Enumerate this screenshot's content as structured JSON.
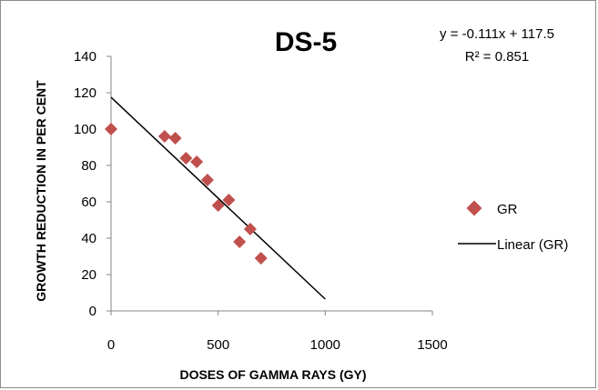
{
  "chart_data": {
    "type": "scatter",
    "title": "DS-5",
    "xlabel": "DOSES OF GAMMA RAYS (GY)",
    "ylabel": "GROWTH REDUCTION IN PER CENT",
    "xlim": [
      0,
      1500
    ],
    "ylim": [
      0,
      140
    ],
    "xticks": [
      0,
      500,
      1000,
      1500
    ],
    "yticks": [
      0,
      20,
      40,
      60,
      80,
      100,
      120,
      140
    ],
    "grid": false,
    "legend_position": "right",
    "series": [
      {
        "name": "GR",
        "type": "scatter",
        "marker": "diamond",
        "color": "#c0504d",
        "x": [
          0,
          250,
          300,
          350,
          400,
          450,
          500,
          550,
          600,
          650,
          700
        ],
        "y": [
          100,
          96,
          95,
          84,
          82,
          72,
          58,
          61,
          38,
          45,
          29
        ]
      },
      {
        "name": "Linear (GR)",
        "type": "line",
        "color": "#000000",
        "slope": -0.111,
        "intercept": 117.5,
        "x_range": [
          0,
          1000
        ]
      }
    ],
    "trendline_equation": "y = -0.111x + 117.5",
    "r_squared": "R² = 0.851"
  }
}
